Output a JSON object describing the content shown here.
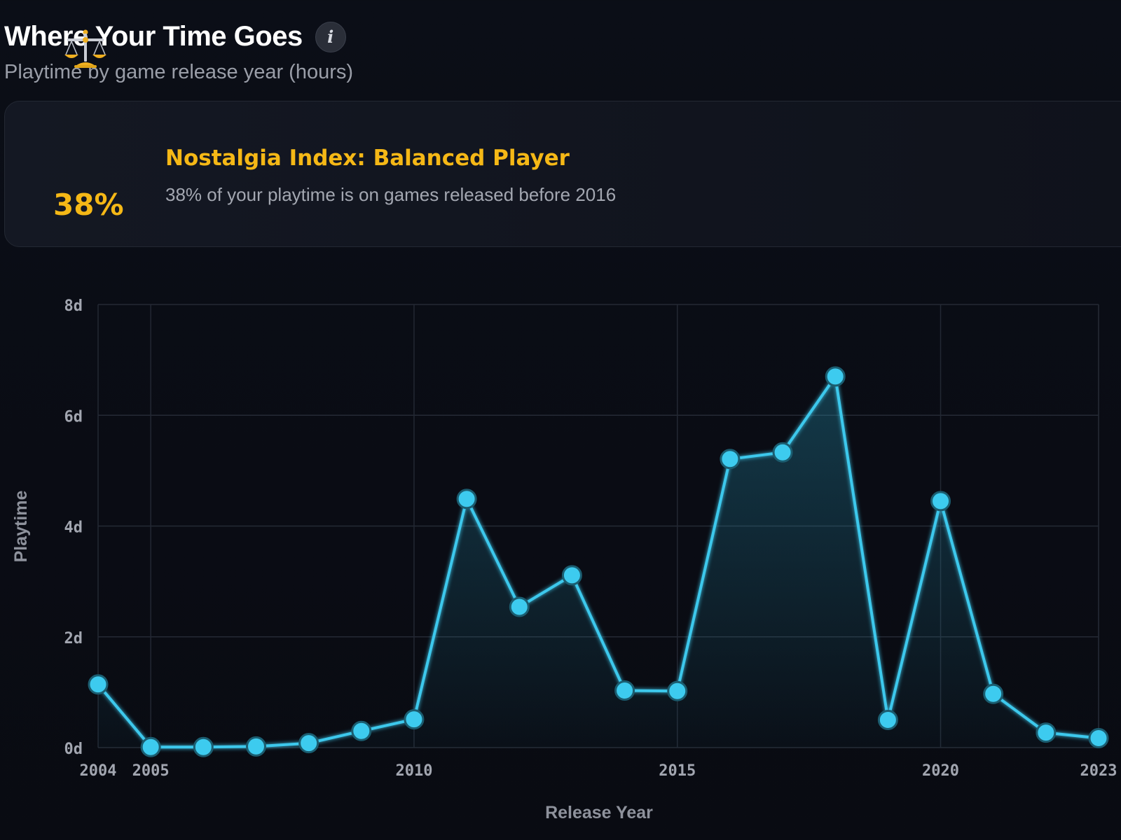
{
  "header": {
    "title": "Where Your Time Goes",
    "info_label": "i",
    "subtitle": "Playtime by game release year (hours)"
  },
  "nostalgia": {
    "icon": "balance-scale-icon",
    "percent": "38%",
    "title": "Nostalgia Index: Balanced Player",
    "description": "38% of your playtime is on games released before 2016"
  },
  "colors": {
    "accent": "#f5b816",
    "line": "#3cc8ec",
    "marker_fill": "#3dcbef",
    "marker_stroke": "#1b5d70"
  },
  "chart_data": {
    "type": "line",
    "xlabel": "Release Year",
    "ylabel": "Playtime",
    "xlim": [
      2004,
      2023
    ],
    "ylim": [
      0,
      8
    ],
    "x_ticks": [
      2004,
      2005,
      2010,
      2015,
      2020,
      2023
    ],
    "y_ticks": [
      0,
      2,
      4,
      6,
      8
    ],
    "y_tick_labels": [
      "0d",
      "2d",
      "4d",
      "6d",
      "8d"
    ],
    "grid": true,
    "area_fill": true,
    "x": [
      2004,
      2005,
      2006,
      2007,
      2008,
      2009,
      2010,
      2011,
      2012,
      2013,
      2014,
      2015,
      2016,
      2017,
      2018,
      2019,
      2020,
      2021,
      2022,
      2023
    ],
    "values_days": [
      1.14,
      0.01,
      0.01,
      0.02,
      0.08,
      0.3,
      0.51,
      4.49,
      2.54,
      3.11,
      1.03,
      1.02,
      5.21,
      5.33,
      6.7,
      0.5,
      4.45,
      0.97,
      0.27,
      0.17
    ]
  }
}
